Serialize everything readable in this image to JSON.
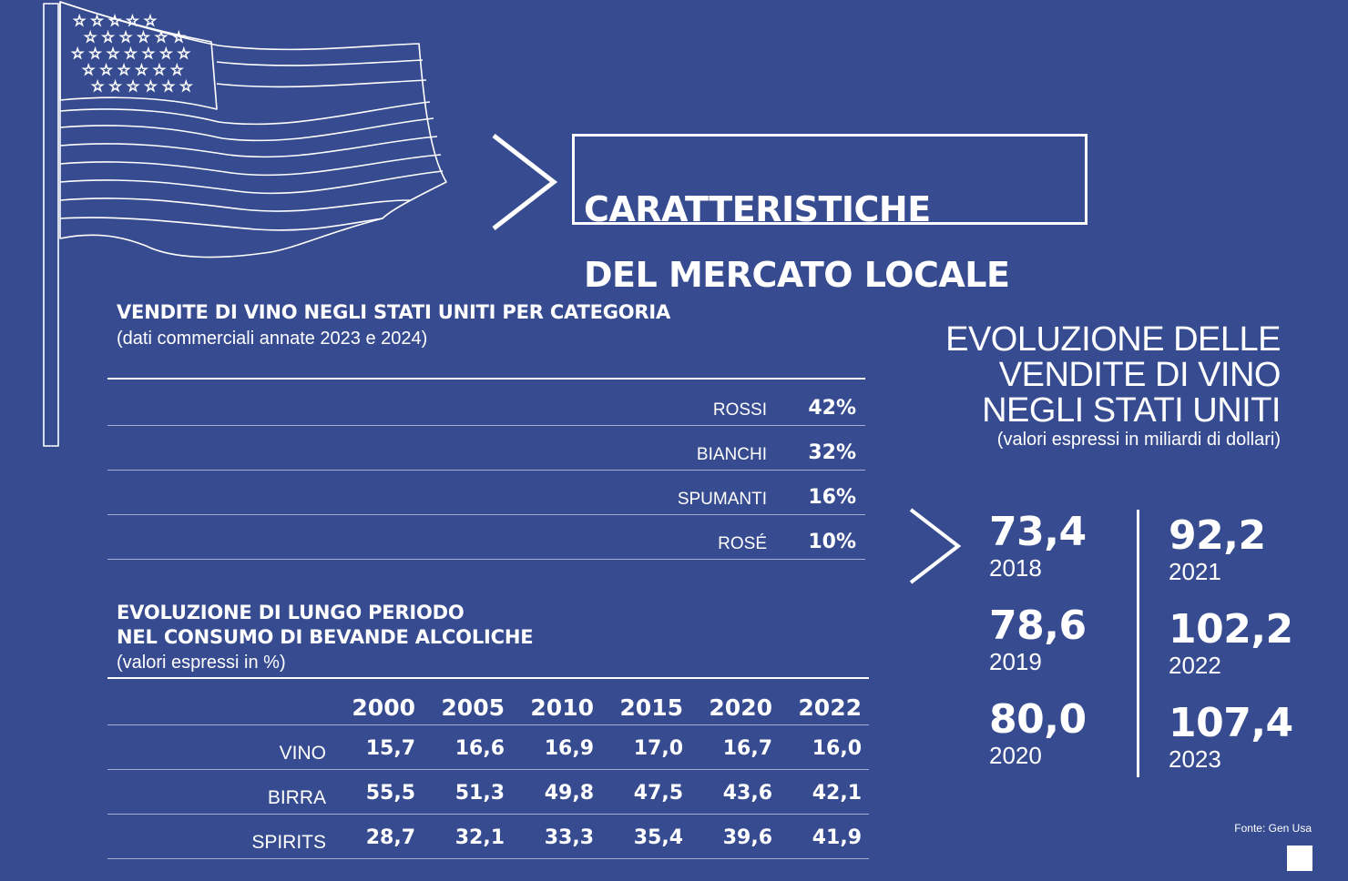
{
  "header": {
    "title_lines": [
      "CARATTERISTICHE",
      "DEL MERCATO LOCALE"
    ]
  },
  "categories_section": {
    "title": "VENDITE DI VINO NEGLI STATI UNITI PER CATEGORIA",
    "subtitle": "(dati commerciali annate 2023 e 2024)",
    "rows": [
      {
        "label": "ROSSI",
        "value": "42%"
      },
      {
        "label": "BIANCHI",
        "value": "32%"
      },
      {
        "label": "SPUMANTI",
        "value": "16%"
      },
      {
        "label": "ROSÉ",
        "value": "10%"
      }
    ]
  },
  "consumption_section": {
    "title_lines": [
      "EVOLUZIONE DI LUNGO PERIODO",
      "NEL CONSUMO DI BEVANDE ALCOLICHE"
    ],
    "subtitle": "(valori espressi in %)",
    "years": [
      "2000",
      "2005",
      "2010",
      "2015",
      "2020",
      "2022"
    ],
    "rows": [
      {
        "label": "VINO",
        "values": [
          "15,7",
          "16,6",
          "16,9",
          "17,0",
          "16,7",
          "16,0"
        ]
      },
      {
        "label": "BIRRA",
        "values": [
          "55,5",
          "51,3",
          "49,8",
          "47,5",
          "43,6",
          "42,1"
        ]
      },
      {
        "label": "SPIRITS",
        "values": [
          "28,7",
          "32,1",
          "33,3",
          "35,4",
          "39,6",
          "41,9"
        ]
      }
    ]
  },
  "sales_section": {
    "title_lines": [
      "EVOLUZIONE DELLE",
      "VENDITE DI VINO",
      "NEGLI STATI UNITI"
    ],
    "subtitle": "(valori espressi in miliardi di dollari)",
    "left": [
      {
        "value": "73,4",
        "year": "2018"
      },
      {
        "value": "78,6",
        "year": "2019"
      },
      {
        "value": "80,0",
        "year": "2020"
      }
    ],
    "right": [
      {
        "value": "92,2",
        "year": "2021"
      },
      {
        "value": "102,2",
        "year": "2022"
      },
      {
        "value": "107,4",
        "year": "2023"
      }
    ]
  },
  "footer": {
    "source": "Fonte: Gen Usa"
  },
  "icons": {
    "flag": "us-flag-icon",
    "chevron": "chevron-right-icon"
  },
  "colors": {
    "background": "#374b90",
    "foreground": "#ffffff"
  }
}
